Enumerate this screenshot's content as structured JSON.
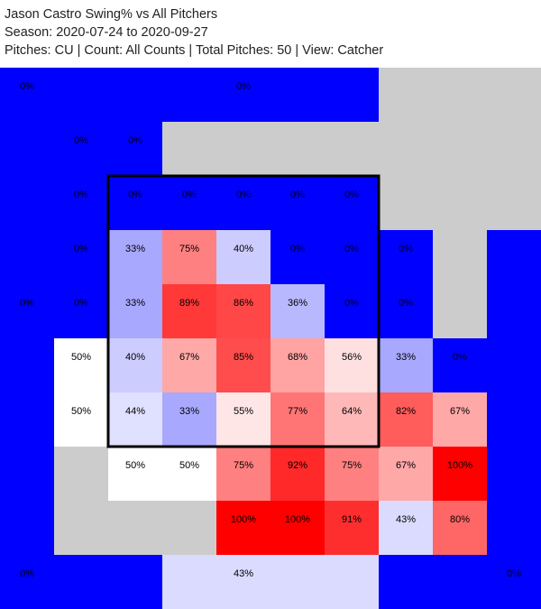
{
  "header": {
    "title": "Jason Castro Swing% vs All Pitchers",
    "season": "Season: 2020-07-24 to 2020-09-27",
    "details": "Pitches: CU | Count: All Counts | Total Pitches: 50 | View: Catcher"
  },
  "colors": {
    "low": "#0000ff",
    "mid": "#ffffff",
    "high": "#ff0000",
    "no_data": "#cccccc",
    "zone_border": "#000000"
  },
  "chart_data": {
    "type": "heatmap",
    "title": "Jason Castro Swing% vs All Pitchers",
    "grid_columns": 10,
    "grid_rows": 10,
    "value_range": [
      0,
      100
    ],
    "strike_zone": {
      "col_start": 2,
      "col_end": 7,
      "row_start": 2,
      "row_end": 7
    },
    "blocks": [
      {
        "c": 0,
        "r": 0,
        "w": 4,
        "h": 1,
        "value": 0,
        "label": "0%",
        "label_col": 0
      },
      {
        "c": 4,
        "r": 0,
        "w": 3,
        "h": 1,
        "value": 0,
        "label": "0%",
        "label_col": 4
      },
      {
        "c": 0,
        "r": 1,
        "w": 1,
        "h": 4,
        "value": 0,
        "label": "0%",
        "label_row": 4
      },
      {
        "c": 0,
        "r": 5,
        "w": 1,
        "h": 5,
        "value": 0,
        "label": "0%",
        "label_row": 9
      },
      {
        "c": 9,
        "r": 4,
        "w": 1,
        "h": 6,
        "value": 0,
        "label": "0%",
        "label_row": 9
      },
      {
        "c": 9,
        "r": 3,
        "w": 1,
        "h": 1,
        "value": 0,
        "label": "",
        "label_col": 9
      },
      {
        "c": 1,
        "r": 9,
        "w": 2,
        "h": 1,
        "value": 0,
        "label": "",
        "label_col": 1
      },
      {
        "c": 3,
        "r": 9,
        "w": 4,
        "h": 1,
        "value": 43,
        "label": "43%",
        "label_col": 4
      },
      {
        "c": 7,
        "r": 9,
        "w": 2,
        "h": 1,
        "value": 0,
        "label": "",
        "label_col": 7
      }
    ],
    "cells": [
      {
        "r": 1,
        "c": 1,
        "value": 0,
        "label": "0%"
      },
      {
        "r": 1,
        "c": 2,
        "value": 0,
        "label": "0%"
      },
      {
        "r": 2,
        "c": 1,
        "value": 0,
        "label": "0%"
      },
      {
        "r": 2,
        "c": 2,
        "value": 0,
        "label": "0%"
      },
      {
        "r": 2,
        "c": 3,
        "value": 0,
        "label": "0%"
      },
      {
        "r": 2,
        "c": 4,
        "value": 0,
        "label": "0%"
      },
      {
        "r": 2,
        "c": 5,
        "value": 0,
        "label": "0%"
      },
      {
        "r": 2,
        "c": 6,
        "value": 0,
        "label": "0%"
      },
      {
        "r": 3,
        "c": 1,
        "value": 0,
        "label": "0%"
      },
      {
        "r": 3,
        "c": 2,
        "value": 33,
        "label": "33%"
      },
      {
        "r": 3,
        "c": 3,
        "value": 75,
        "label": "75%"
      },
      {
        "r": 3,
        "c": 4,
        "value": 40,
        "label": "40%"
      },
      {
        "r": 3,
        "c": 5,
        "value": 0,
        "label": "0%"
      },
      {
        "r": 3,
        "c": 6,
        "value": 0,
        "label": "0%"
      },
      {
        "r": 3,
        "c": 7,
        "value": 0,
        "label": "0%"
      },
      {
        "r": 4,
        "c": 1,
        "value": 0,
        "label": "0%"
      },
      {
        "r": 4,
        "c": 2,
        "value": 33,
        "label": "33%"
      },
      {
        "r": 4,
        "c": 3,
        "value": 89,
        "label": "89%"
      },
      {
        "r": 4,
        "c": 4,
        "value": 86,
        "label": "86%"
      },
      {
        "r": 4,
        "c": 5,
        "value": 36,
        "label": "36%"
      },
      {
        "r": 4,
        "c": 6,
        "value": 0,
        "label": "0%"
      },
      {
        "r": 4,
        "c": 7,
        "value": 0,
        "label": "0%"
      },
      {
        "r": 5,
        "c": 1,
        "value": 50,
        "label": "50%"
      },
      {
        "r": 5,
        "c": 2,
        "value": 40,
        "label": "40%"
      },
      {
        "r": 5,
        "c": 3,
        "value": 67,
        "label": "67%"
      },
      {
        "r": 5,
        "c": 4,
        "value": 85,
        "label": "85%"
      },
      {
        "r": 5,
        "c": 5,
        "value": 68,
        "label": "68%"
      },
      {
        "r": 5,
        "c": 6,
        "value": 56,
        "label": "56%"
      },
      {
        "r": 5,
        "c": 7,
        "value": 33,
        "label": "33%"
      },
      {
        "r": 5,
        "c": 8,
        "value": 0,
        "label": "0%"
      },
      {
        "r": 6,
        "c": 1,
        "value": 50,
        "label": "50%"
      },
      {
        "r": 6,
        "c": 2,
        "value": 44,
        "label": "44%"
      },
      {
        "r": 6,
        "c": 3,
        "value": 33,
        "label": "33%"
      },
      {
        "r": 6,
        "c": 4,
        "value": 55,
        "label": "55%"
      },
      {
        "r": 6,
        "c": 5,
        "value": 77,
        "label": "77%"
      },
      {
        "r": 6,
        "c": 6,
        "value": 64,
        "label": "64%"
      },
      {
        "r": 6,
        "c": 7,
        "value": 82,
        "label": "82%"
      },
      {
        "r": 6,
        "c": 8,
        "value": 67,
        "label": "67%"
      },
      {
        "r": 7,
        "c": 2,
        "value": 50,
        "label": "50%"
      },
      {
        "r": 7,
        "c": 3,
        "value": 50,
        "label": "50%"
      },
      {
        "r": 7,
        "c": 4,
        "value": 75,
        "label": "75%"
      },
      {
        "r": 7,
        "c": 5,
        "value": 92,
        "label": "92%"
      },
      {
        "r": 7,
        "c": 6,
        "value": 75,
        "label": "75%"
      },
      {
        "r": 7,
        "c": 7,
        "value": 67,
        "label": "67%"
      },
      {
        "r": 7,
        "c": 8,
        "value": 100,
        "label": "100%"
      },
      {
        "r": 8,
        "c": 4,
        "value": 100,
        "label": "100%"
      },
      {
        "r": 8,
        "c": 5,
        "value": 100,
        "label": "100%"
      },
      {
        "r": 8,
        "c": 6,
        "value": 91,
        "label": "91%"
      },
      {
        "r": 8,
        "c": 7,
        "value": 43,
        "label": "43%"
      },
      {
        "r": 8,
        "c": 8,
        "value": 80,
        "label": "80%"
      }
    ]
  }
}
